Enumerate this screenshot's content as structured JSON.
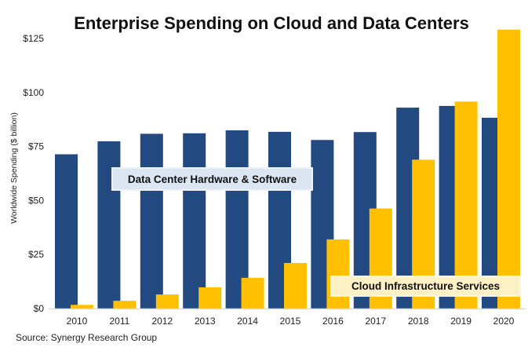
{
  "chart_data": {
    "type": "bar",
    "title": "Enterprise Spending on Cloud and Data Centers",
    "xlabel": "",
    "ylabel": "Worldwide Spending ($ billion)",
    "ylim": [
      0,
      125
    ],
    "yticks": [
      0,
      25,
      50,
      75,
      100,
      125
    ],
    "ytick_labels": [
      "$0",
      "$25",
      "$50",
      "$75",
      "$100",
      "$125"
    ],
    "grid": false,
    "categories": [
      "2010",
      "2011",
      "2012",
      "2013",
      "2014",
      "2015",
      "2016",
      "2017",
      "2018",
      "2019",
      "2020"
    ],
    "series": [
      {
        "name": "Data Center Hardware & Software",
        "color": "#234a80",
        "values": [
          71.4,
          77.4,
          80.9,
          81.1,
          82.5,
          81.8,
          78.0,
          81.7,
          93.0,
          93.8,
          88.3
        ]
      },
      {
        "name": "Cloud Infrastructure Services",
        "color": "#fec000",
        "values": [
          1.7,
          3.6,
          6.5,
          9.8,
          14.2,
          21.1,
          32.0,
          46.3,
          68.9,
          95.8,
          129.1
        ]
      }
    ],
    "annotations": [
      {
        "text": "Data Center Hardware & Software",
        "series": 0,
        "background": "#dce6f2"
      },
      {
        "text": "Cloud Infrastructure Services",
        "series": 1,
        "background": "#fdf0c4"
      }
    ],
    "source": "Source: Synergy Research Group"
  }
}
